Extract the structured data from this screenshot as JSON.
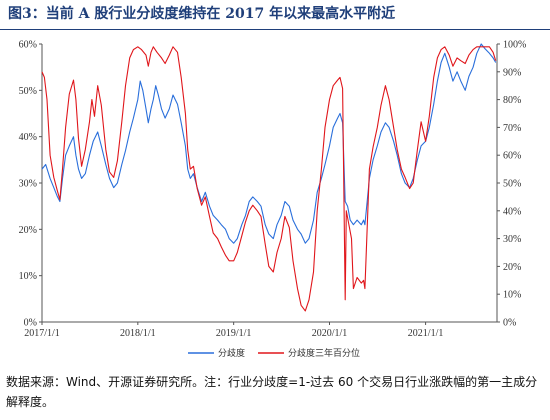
{
  "figure": {
    "title": "图3：当前 A 股行业分歧度维持在 2017 年以来最高水平附近",
    "note": "数据来源：Wind、开源证券研究所。注：行业分歧度=1-过去 60 个交易日行业涨跌幅的第一主成分解释度。"
  },
  "colors": {
    "series1": "#2a6fdb",
    "series2": "#e0161b",
    "axis": "#555555",
    "title": "#1f3f7a"
  },
  "chart_data": {
    "type": "line",
    "x_ticks": [
      "2017/1/1",
      "2018/1/1",
      "2019/1/1",
      "2020/1/1",
      "2021/1/1"
    ],
    "xlim": [
      "2017/1/1",
      "2021/9/30"
    ],
    "y_left": {
      "ticks": [
        "0%",
        "10%",
        "20%",
        "30%",
        "40%",
        "50%",
        "60%"
      ],
      "ylim": [
        0,
        60
      ]
    },
    "y_right": {
      "ticks": [
        "0%",
        "10%",
        "20%",
        "30%",
        "40%",
        "50%",
        "60%",
        "70%",
        "80%",
        "90%",
        "100%"
      ],
      "ylim": [
        0,
        100
      ]
    },
    "legend_position": "bottom-center",
    "grid": false,
    "series": [
      {
        "name": "分歧度",
        "axis": "left",
        "points": [
          [
            "2017/1/1",
            33
          ],
          [
            "2017/1/15",
            34
          ],
          [
            "2017/2/1",
            31
          ],
          [
            "2017/2/15",
            29
          ],
          [
            "2017/3/1",
            27
          ],
          [
            "2017/3/10",
            26
          ],
          [
            "2017/3/20",
            31
          ],
          [
            "2017/4/1",
            36
          ],
          [
            "2017/4/15",
            38
          ],
          [
            "2017/5/1",
            40
          ],
          [
            "2017/5/10",
            36
          ],
          [
            "2017/5/20",
            33
          ],
          [
            "2017/6/1",
            31
          ],
          [
            "2017/6/15",
            32
          ],
          [
            "2017/7/1",
            36
          ],
          [
            "2017/7/15",
            39
          ],
          [
            "2017/8/1",
            41
          ],
          [
            "2017/8/15",
            38
          ],
          [
            "2017/9/1",
            34
          ],
          [
            "2017/9/15",
            31
          ],
          [
            "2017/10/1",
            29
          ],
          [
            "2017/10/15",
            30
          ],
          [
            "2017/11/1",
            34
          ],
          [
            "2017/11/15",
            37
          ],
          [
            "2017/12/1",
            41
          ],
          [
            "2017/12/15",
            44
          ],
          [
            "2018/1/1",
            48
          ],
          [
            "2018/1/10",
            52
          ],
          [
            "2018/1/20",
            50
          ],
          [
            "2018/2/1",
            46
          ],
          [
            "2018/2/10",
            43
          ],
          [
            "2018/2/20",
            46
          ],
          [
            "2018/3/1",
            48
          ],
          [
            "2018/3/10",
            51
          ],
          [
            "2018/3/20",
            49
          ],
          [
            "2018/4/1",
            46
          ],
          [
            "2018/4/15",
            44
          ],
          [
            "2018/5/1",
            46
          ],
          [
            "2018/5/15",
            49
          ],
          [
            "2018/6/1",
            47
          ],
          [
            "2018/6/15",
            43
          ],
          [
            "2018/7/1",
            38
          ],
          [
            "2018/7/10",
            33
          ],
          [
            "2018/7/20",
            31
          ],
          [
            "2018/8/1",
            32
          ],
          [
            "2018/8/15",
            29
          ],
          [
            "2018/9/1",
            26
          ],
          [
            "2018/9/15",
            28
          ],
          [
            "2018/10/1",
            25
          ],
          [
            "2018/10/15",
            23
          ],
          [
            "2018/11/1",
            22
          ],
          [
            "2018/11/15",
            21
          ],
          [
            "2018/12/1",
            20
          ],
          [
            "2018/12/15",
            18
          ],
          [
            "2019/1/1",
            17
          ],
          [
            "2019/1/15",
            18
          ],
          [
            "2019/2/1",
            21
          ],
          [
            "2019/2/15",
            23
          ],
          [
            "2019/3/1",
            26
          ],
          [
            "2019/3/15",
            27
          ],
          [
            "2019/4/1",
            26
          ],
          [
            "2019/4/15",
            25
          ],
          [
            "2019/5/1",
            21
          ],
          [
            "2019/5/15",
            19
          ],
          [
            "2019/6/1",
            18
          ],
          [
            "2019/6/15",
            21
          ],
          [
            "2019/7/1",
            23
          ],
          [
            "2019/7/15",
            26
          ],
          [
            "2019/8/1",
            25
          ],
          [
            "2019/8/15",
            22
          ],
          [
            "2019/9/1",
            20
          ],
          [
            "2019/9/15",
            19
          ],
          [
            "2019/10/1",
            17
          ],
          [
            "2019/10/15",
            18
          ],
          [
            "2019/11/1",
            22
          ],
          [
            "2019/11/15",
            28
          ],
          [
            "2019/12/1",
            31
          ],
          [
            "2019/12/15",
            34
          ],
          [
            "2020/1/1",
            38
          ],
          [
            "2020/1/15",
            42
          ],
          [
            "2020/2/1",
            44
          ],
          [
            "2020/2/10",
            45
          ],
          [
            "2020/2/20",
            43
          ],
          [
            "2020/3/1",
            26
          ],
          [
            "2020/3/10",
            25
          ],
          [
            "2020/3/20",
            22
          ],
          [
            "2020/4/1",
            21
          ],
          [
            "2020/4/15",
            22
          ],
          [
            "2020/5/1",
            21
          ],
          [
            "2020/5/10",
            22
          ],
          [
            "2020/5/15",
            21
          ],
          [
            "2020/6/1",
            31
          ],
          [
            "2020/6/15",
            35
          ],
          [
            "2020/7/1",
            38
          ],
          [
            "2020/7/15",
            41
          ],
          [
            "2020/8/1",
            43
          ],
          [
            "2020/8/15",
            42
          ],
          [
            "2020/9/1",
            39
          ],
          [
            "2020/9/15",
            36
          ],
          [
            "2020/10/1",
            32
          ],
          [
            "2020/10/15",
            30
          ],
          [
            "2020/11/1",
            29
          ],
          [
            "2020/11/15",
            31
          ],
          [
            "2020/12/1",
            35
          ],
          [
            "2020/12/15",
            38
          ],
          [
            "2021/1/1",
            39
          ],
          [
            "2021/1/15",
            42
          ],
          [
            "2021/2/1",
            47
          ],
          [
            "2021/2/15",
            52
          ],
          [
            "2021/3/1",
            56
          ],
          [
            "2021/3/15",
            58
          ],
          [
            "2021/4/1",
            55
          ],
          [
            "2021/4/15",
            52
          ],
          [
            "2021/5/1",
            54
          ],
          [
            "2021/5/15",
            52
          ],
          [
            "2021/6/1",
            50
          ],
          [
            "2021/6/15",
            53
          ],
          [
            "2021/7/1",
            55
          ],
          [
            "2021/7/15",
            58
          ],
          [
            "2021/8/1",
            60
          ],
          [
            "2021/8/15",
            59
          ],
          [
            "2021/9/1",
            58
          ],
          [
            "2021/9/15",
            57
          ],
          [
            "2021/9/25",
            56
          ]
        ]
      },
      {
        "name": "分歧度三年百分位",
        "axis": "right",
        "points": [
          [
            "2017/1/1",
            90
          ],
          [
            "2017/1/10",
            88
          ],
          [
            "2017/1/20",
            80
          ],
          [
            "2017/2/1",
            60
          ],
          [
            "2017/2/15",
            52
          ],
          [
            "2017/3/1",
            47
          ],
          [
            "2017/3/10",
            44
          ],
          [
            "2017/3/20",
            55
          ],
          [
            "2017/4/1",
            70
          ],
          [
            "2017/4/15",
            82
          ],
          [
            "2017/5/1",
            87
          ],
          [
            "2017/5/10",
            80
          ],
          [
            "2017/5/20",
            66
          ],
          [
            "2017/6/1",
            56
          ],
          [
            "2017/6/15",
            62
          ],
          [
            "2017/7/1",
            72
          ],
          [
            "2017/7/10",
            80
          ],
          [
            "2017/7/20",
            74
          ],
          [
            "2017/8/1",
            85
          ],
          [
            "2017/8/15",
            78
          ],
          [
            "2017/9/1",
            62
          ],
          [
            "2017/9/15",
            54
          ],
          [
            "2017/10/1",
            52
          ],
          [
            "2017/10/15",
            58
          ],
          [
            "2017/11/1",
            72
          ],
          [
            "2017/11/15",
            85
          ],
          [
            "2017/12/1",
            95
          ],
          [
            "2017/12/15",
            98
          ],
          [
            "2018/1/1",
            99
          ],
          [
            "2018/1/15",
            98
          ],
          [
            "2018/2/1",
            96
          ],
          [
            "2018/2/10",
            92
          ],
          [
            "2018/2/20",
            97
          ],
          [
            "2018/3/1",
            99
          ],
          [
            "2018/3/15",
            97
          ],
          [
            "2018/4/1",
            95
          ],
          [
            "2018/4/15",
            93
          ],
          [
            "2018/5/1",
            96
          ],
          [
            "2018/5/15",
            99
          ],
          [
            "2018/6/1",
            97
          ],
          [
            "2018/6/15",
            88
          ],
          [
            "2018/7/1",
            75
          ],
          [
            "2018/7/10",
            62
          ],
          [
            "2018/7/20",
            55
          ],
          [
            "2018/8/1",
            56
          ],
          [
            "2018/8/15",
            48
          ],
          [
            "2018/9/1",
            42
          ],
          [
            "2018/9/15",
            45
          ],
          [
            "2018/10/1",
            38
          ],
          [
            "2018/10/15",
            32
          ],
          [
            "2018/11/1",
            30
          ],
          [
            "2018/11/15",
            27
          ],
          [
            "2018/12/1",
            24
          ],
          [
            "2018/12/15",
            22
          ],
          [
            "2019/1/1",
            22
          ],
          [
            "2019/1/15",
            25
          ],
          [
            "2019/2/1",
            31
          ],
          [
            "2019/2/15",
            36
          ],
          [
            "2019/3/1",
            40
          ],
          [
            "2019/3/15",
            42
          ],
          [
            "2019/4/1",
            40
          ],
          [
            "2019/4/15",
            38
          ],
          [
            "2019/5/1",
            28
          ],
          [
            "2019/5/15",
            20
          ],
          [
            "2019/6/1",
            18
          ],
          [
            "2019/6/15",
            25
          ],
          [
            "2019/7/1",
            30
          ],
          [
            "2019/7/15",
            38
          ],
          [
            "2019/8/1",
            34
          ],
          [
            "2019/8/15",
            22
          ],
          [
            "2019/9/1",
            12
          ],
          [
            "2019/9/15",
            6
          ],
          [
            "2019/10/1",
            4
          ],
          [
            "2019/10/15",
            8
          ],
          [
            "2019/11/1",
            18
          ],
          [
            "2019/11/15",
            40
          ],
          [
            "2019/12/1",
            55
          ],
          [
            "2019/12/15",
            70
          ],
          [
            "2020/1/1",
            80
          ],
          [
            "2020/1/15",
            85
          ],
          [
            "2020/2/1",
            87
          ],
          [
            "2020/2/10",
            88
          ],
          [
            "2020/2/20",
            84
          ],
          [
            "2020/3/1",
            8
          ],
          [
            "2020/3/5",
            40
          ],
          [
            "2020/3/15",
            35
          ],
          [
            "2020/3/25",
            30
          ],
          [
            "2020/4/1",
            12
          ],
          [
            "2020/4/15",
            16
          ],
          [
            "2020/5/1",
            14
          ],
          [
            "2020/5/10",
            15
          ],
          [
            "2020/5/15",
            12
          ],
          [
            "2020/6/1",
            55
          ],
          [
            "2020/6/15",
            63
          ],
          [
            "2020/7/1",
            70
          ],
          [
            "2020/7/15",
            78
          ],
          [
            "2020/8/1",
            85
          ],
          [
            "2020/8/15",
            80
          ],
          [
            "2020/9/1",
            70
          ],
          [
            "2020/9/15",
            62
          ],
          [
            "2020/10/1",
            55
          ],
          [
            "2020/10/15",
            52
          ],
          [
            "2020/11/1",
            48
          ],
          [
            "2020/11/15",
            50
          ],
          [
            "2020/12/1",
            62
          ],
          [
            "2020/12/15",
            72
          ],
          [
            "2021/1/1",
            65
          ],
          [
            "2021/1/15",
            74
          ],
          [
            "2021/2/1",
            88
          ],
          [
            "2021/2/15",
            95
          ],
          [
            "2021/3/1",
            98
          ],
          [
            "2021/3/15",
            99
          ],
          [
            "2021/4/1",
            96
          ],
          [
            "2021/4/15",
            92
          ],
          [
            "2021/5/1",
            95
          ],
          [
            "2021/5/15",
            94
          ],
          [
            "2021/6/1",
            93
          ],
          [
            "2021/6/15",
            96
          ],
          [
            "2021/7/1",
            98
          ],
          [
            "2021/7/15",
            99
          ],
          [
            "2021/8/1",
            99
          ],
          [
            "2021/8/15",
            99
          ],
          [
            "2021/9/1",
            99
          ],
          [
            "2021/9/15",
            97
          ],
          [
            "2021/9/25",
            94
          ]
        ]
      }
    ]
  }
}
